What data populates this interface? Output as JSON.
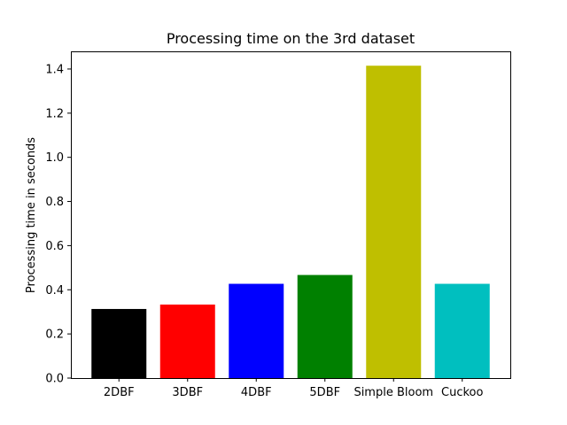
{
  "chart_data": {
    "type": "bar",
    "title": "Processing time on the 3rd dataset",
    "xlabel": "",
    "ylabel": "Processing time in seconds",
    "categories": [
      "2DBF",
      "3DBF",
      "4DBF",
      "5DBF",
      "Simple Bloom",
      "Cuckoo"
    ],
    "values": [
      0.313,
      0.333,
      0.427,
      0.467,
      1.415,
      0.427
    ],
    "colors": [
      "#000000",
      "#ff0000",
      "#0000ff",
      "#008000",
      "#bfbf00",
      "#00bfbf"
    ],
    "ylim": [
      0,
      1.48
    ],
    "yticks": [
      0.0,
      0.2,
      0.4,
      0.6,
      0.8,
      1.0,
      1.2,
      1.4
    ],
    "ytick_labels": [
      "0.0",
      "0.2",
      "0.4",
      "0.6",
      "0.8",
      "1.0",
      "1.2",
      "1.4"
    ],
    "grid": false,
    "legend": "none"
  }
}
